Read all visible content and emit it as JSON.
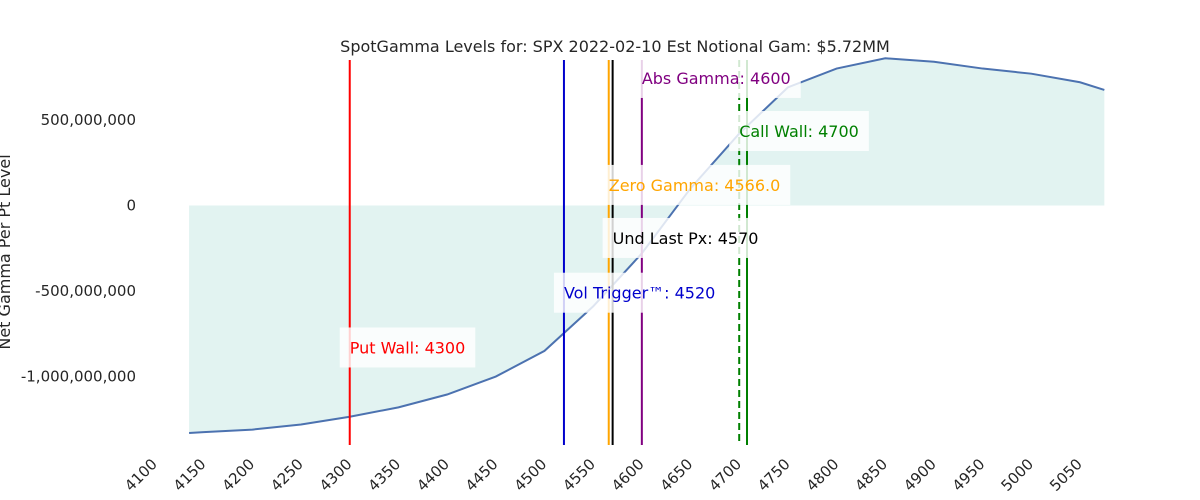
{
  "chart_data": {
    "type": "area",
    "title": "SpotGamma Levels for: SPX  2022-02-10 Est Notional Gam: $5.72MM",
    "xlabel": "",
    "ylabel": "Net Gamma Per Pt Level",
    "xlim": [
      4100,
      5050
    ],
    "ylim": [
      -1400000000,
      850000000
    ],
    "x_ticks": [
      4100,
      4150,
      4200,
      4250,
      4300,
      4350,
      4400,
      4450,
      4500,
      4550,
      4600,
      4650,
      4700,
      4750,
      4800,
      4850,
      4900,
      4950,
      5000,
      5050
    ],
    "y_ticks": [
      500000000,
      0,
      -500000000,
      -1000000000
    ],
    "y_tick_labels": [
      "500,000,000",
      "0",
      "-500,000,000",
      "-1,000,000,000"
    ],
    "grid": false,
    "series": [
      {
        "color": "#4c72b0",
        "fill": "#e2f3f1",
        "x": [
          4135,
          4150,
          4200,
          4250,
          4300,
          4350,
          4400,
          4450,
          4500,
          4550,
          4600,
          4650,
          4700,
          4750,
          4800,
          4850,
          4900,
          4950,
          5000,
          5050,
          5075
        ],
        "y": [
          -1330000000,
          -1325000000,
          -1310000000,
          -1280000000,
          -1235000000,
          -1180000000,
          -1105000000,
          -1000000000,
          -850000000,
          -590000000,
          -280000000,
          100000000,
          420000000,
          690000000,
          800000000,
          860000000,
          840000000,
          800000000,
          770000000,
          720000000,
          675000000
        ]
      }
    ],
    "levels": [
      {
        "name": "Put Wall",
        "label": "Put Wall: 4300",
        "value": 4300,
        "color": "#ff0000",
        "style": "solid",
        "label_y": -830000000
      },
      {
        "name": "Vol Trigger",
        "label": "Vol Trigger™: 4520",
        "value": 4520,
        "color": "#0000cc",
        "style": "solid",
        "label_y": -510000000
      },
      {
        "name": "Zero Gamma",
        "label": "Zero Gamma: 4566.0",
        "value": 4566.0,
        "color": "#ffa500",
        "style": "solid",
        "label_y": 120000000
      },
      {
        "name": "Und Last Px",
        "label": "Und Last Px: 4570",
        "value": 4570,
        "color": "#000000",
        "style": "solid",
        "label_y": -190000000
      },
      {
        "name": "Abs Gamma",
        "label": "Abs Gamma: 4600",
        "value": 4600,
        "color": "#800080",
        "style": "solid",
        "label_y": 745000000
      },
      {
        "name": "Call Wall",
        "label": "Call Wall: 4700",
        "value": 4700,
        "color": "#008000",
        "style": "dashed",
        "label_y": 435000000
      },
      {
        "name": "Call Wall",
        "label": "",
        "value": 4708,
        "color": "#008000",
        "style": "solid",
        "label_y": 0
      }
    ]
  }
}
